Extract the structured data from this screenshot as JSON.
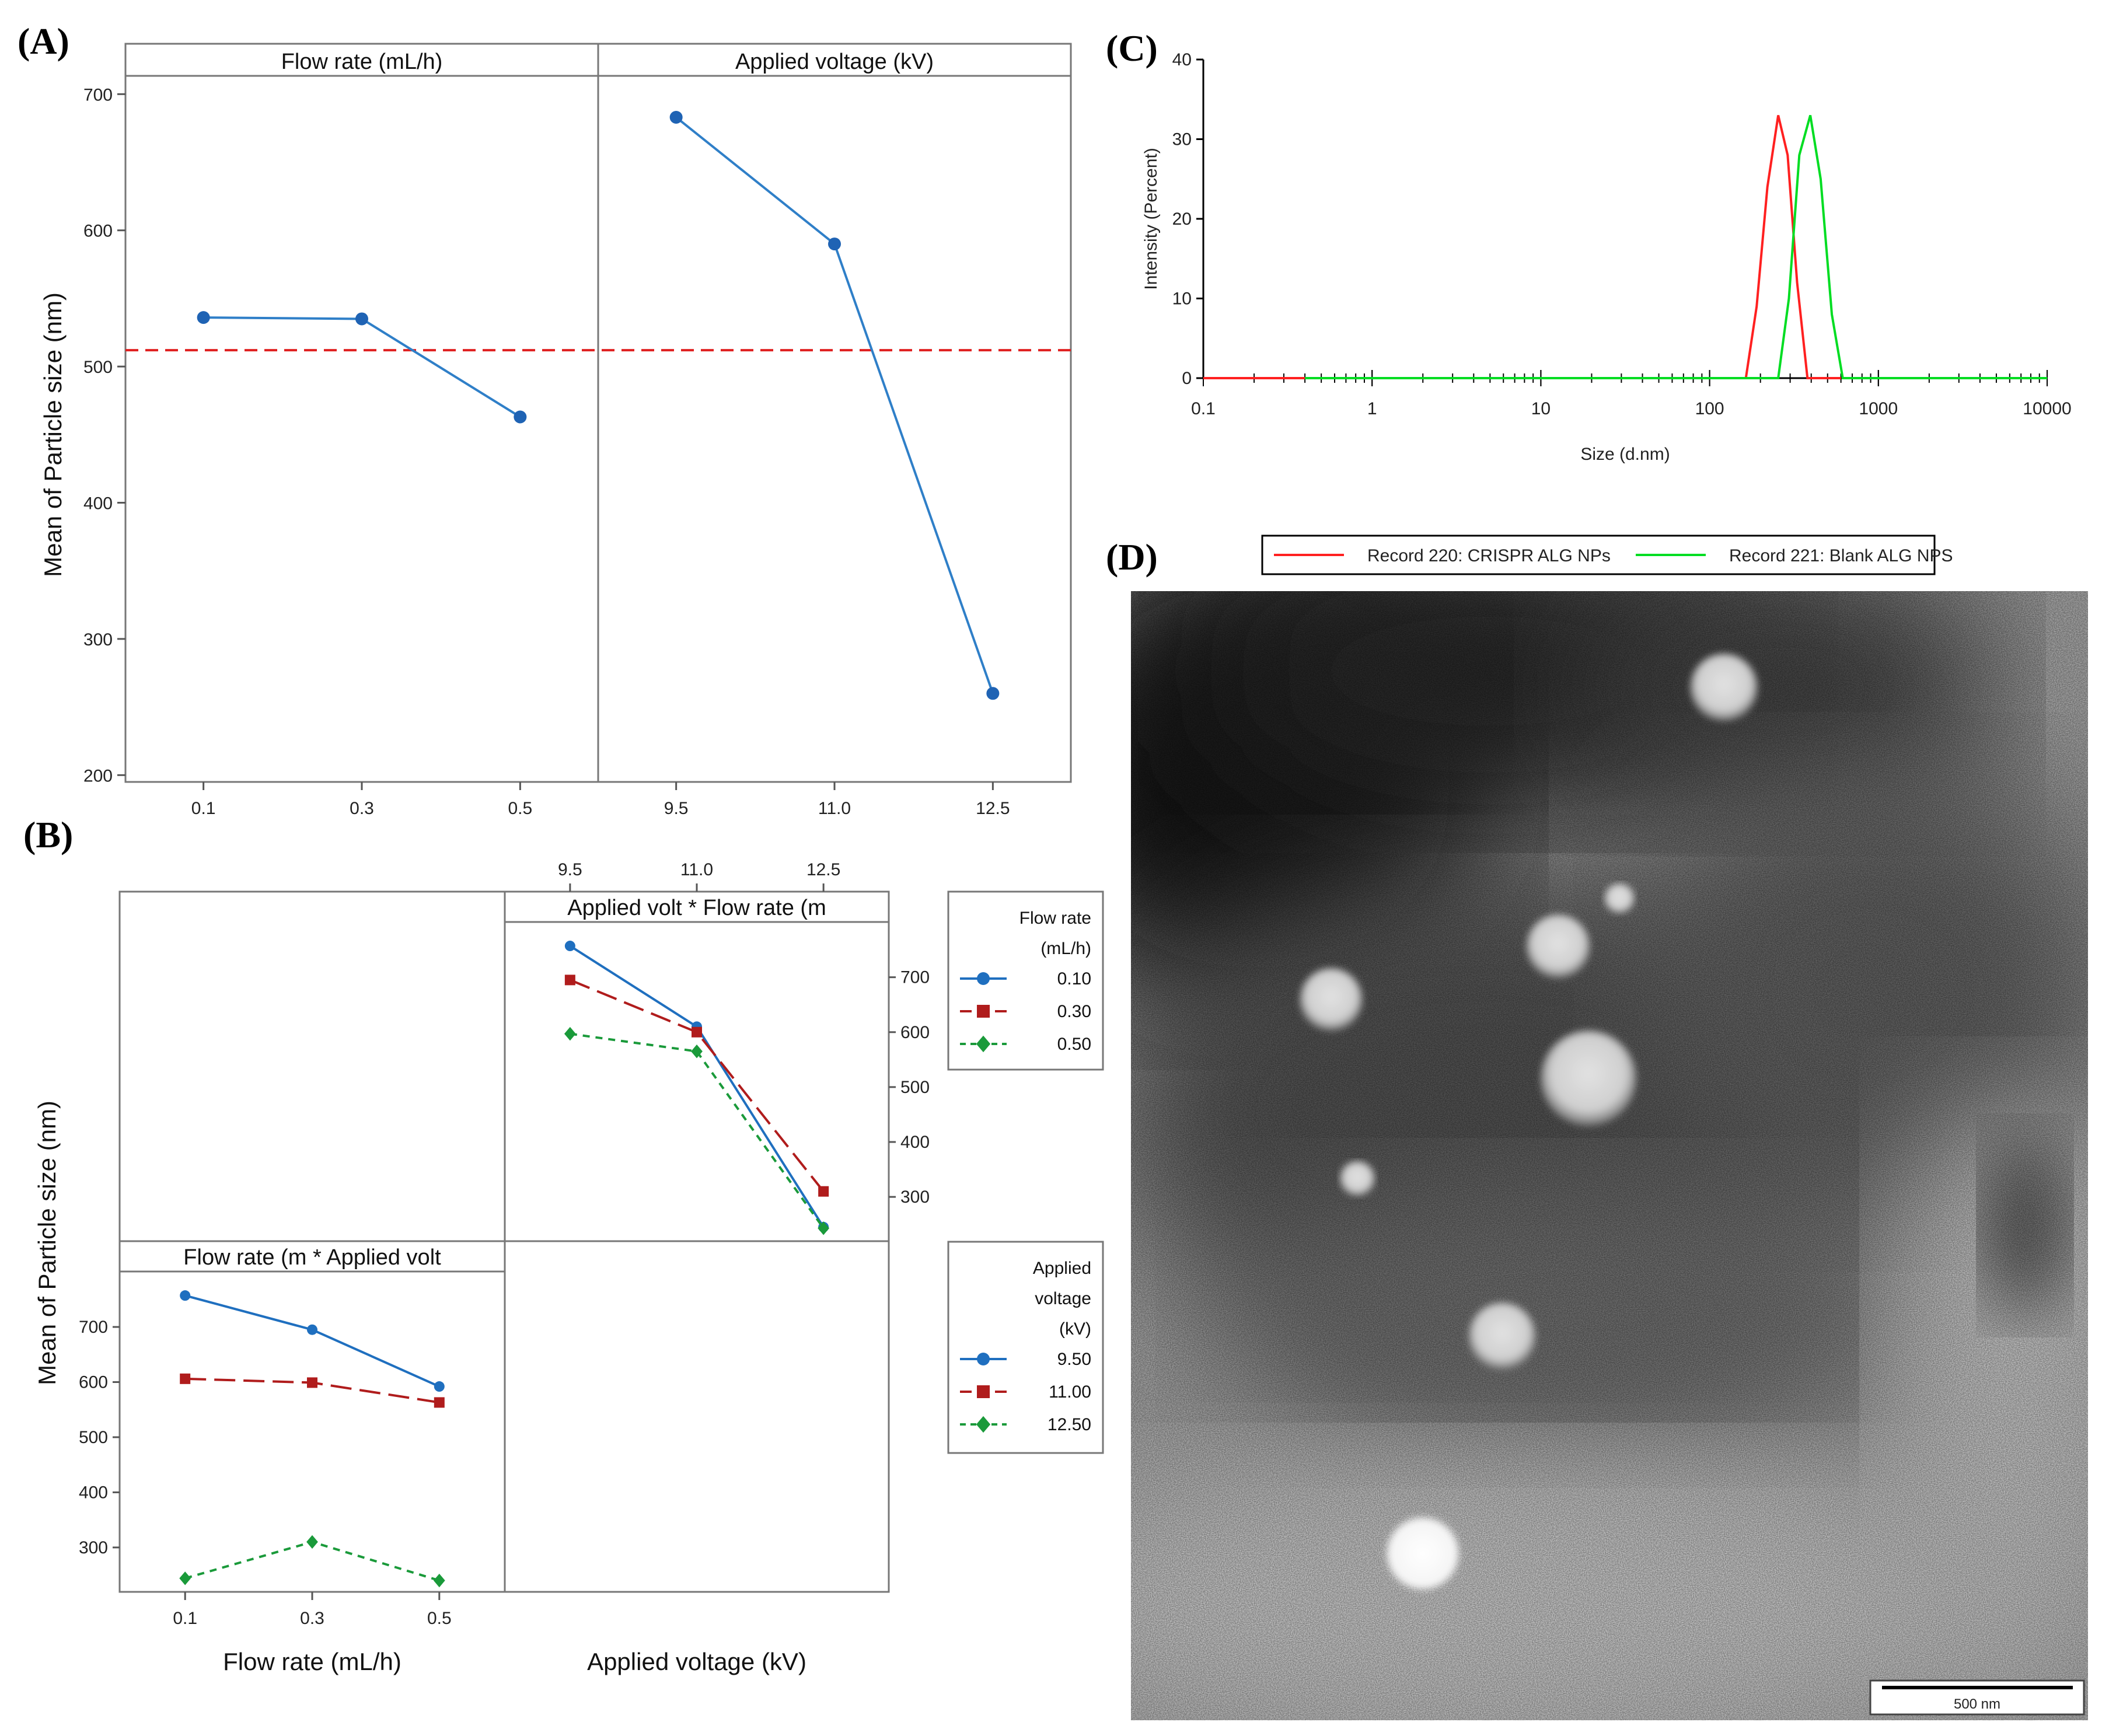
{
  "panels": {
    "A": {
      "label": "(A)"
    },
    "B": {
      "label": "(B)"
    },
    "C": {
      "label": "(C)"
    },
    "D": {
      "label": "(D)"
    }
  },
  "chart_data": [
    {
      "id": "A",
      "type": "line",
      "title": "",
      "ylabel": "Mean of Particle size (nm)",
      "ylim": [
        195,
        710
      ],
      "yticks": [
        200,
        300,
        400,
        500,
        600,
        700
      ],
      "reference_line": 512,
      "line_color": "#2f7fc8",
      "reference_color": "#e02020",
      "facets": [
        {
          "name": "Flow rate (mL/h)",
          "categories": [
            "0.1",
            "0.3",
            "0.5"
          ],
          "values": [
            536,
            535,
            463
          ]
        },
        {
          "name": "Applied voltage (kV)",
          "categories": [
            "9.5",
            "11.0",
            "12.5"
          ],
          "values": [
            683,
            590,
            260
          ]
        }
      ]
    },
    {
      "id": "B",
      "type": "line",
      "ylabel": "Mean of Particle size (nm)",
      "ylim": [
        230,
        790
      ],
      "yticks": [
        300,
        400,
        500,
        600,
        700
      ],
      "top_right": {
        "strip": "Applied volt * Flow rate (m",
        "top_ticks": [
          "9.5",
          "11.0",
          "12.5"
        ],
        "categories": [
          "9.5",
          "11.0",
          "12.5"
        ],
        "series": [
          {
            "name": "0.10",
            "values": [
              757,
              610,
              245
            ]
          },
          {
            "name": "0.30",
            "values": [
              695,
              600,
              310
            ]
          },
          {
            "name": "0.50",
            "values": [
              597,
              565,
              243
            ]
          }
        ]
      },
      "bottom_left": {
        "strip": "Flow rate (m * Applied volt",
        "categories": [
          "0.1",
          "0.3",
          "0.5"
        ],
        "series": [
          {
            "name": "9.50",
            "values": [
              757,
              695,
              592
            ]
          },
          {
            "name": "11.00",
            "values": [
              606,
              599,
              563
            ]
          },
          {
            "name": "12.50",
            "values": [
              244,
              310,
              240
            ]
          }
        ]
      },
      "xlabel_left": "Flow rate (mL/h)",
      "xlabel_right": "Applied voltage (kV)",
      "legend_top": {
        "title": [
          "Flow rate",
          "(mL/h)"
        ],
        "items": [
          "0.10",
          "0.30",
          "0.50"
        ]
      },
      "legend_bottom": {
        "title": [
          "Applied",
          "voltage",
          "(kV)"
        ],
        "items": [
          "9.50",
          "11.00",
          "12.50"
        ]
      },
      "colors": [
        "#1f6fbf",
        "#b01c1c",
        "#1a9a3a"
      ],
      "markers": [
        "circle",
        "square",
        "diamond"
      ]
    },
    {
      "id": "C",
      "type": "line",
      "xscale": "log",
      "xlim": [
        0.1,
        10000
      ],
      "ylim": [
        0,
        40
      ],
      "xticks": [
        "0.1",
        "1",
        "10",
        "100",
        "1000",
        "10000"
      ],
      "yticks": [
        0,
        10,
        20,
        30,
        40
      ],
      "xlabel": "Size (d.nm)",
      "ylabel": "Intensity (Percent)",
      "series": [
        {
          "name": "Record 220: CRISPR ALG NPs",
          "color": "#ff2020",
          "x": [
            164,
            190,
            220,
            255,
            290,
            330,
            380
          ],
          "y": [
            0,
            9,
            24,
            33,
            28,
            12,
            0
          ]
        },
        {
          "name": "Record 221: Blank ALG NPS",
          "color": "#00dd22",
          "x": [
            255,
            295,
            340,
            395,
            455,
            530,
            615
          ],
          "y": [
            0,
            10,
            28,
            33,
            25,
            8,
            0
          ]
        }
      ]
    }
  ],
  "micrograph": {
    "scale_bar": "500 nm"
  }
}
